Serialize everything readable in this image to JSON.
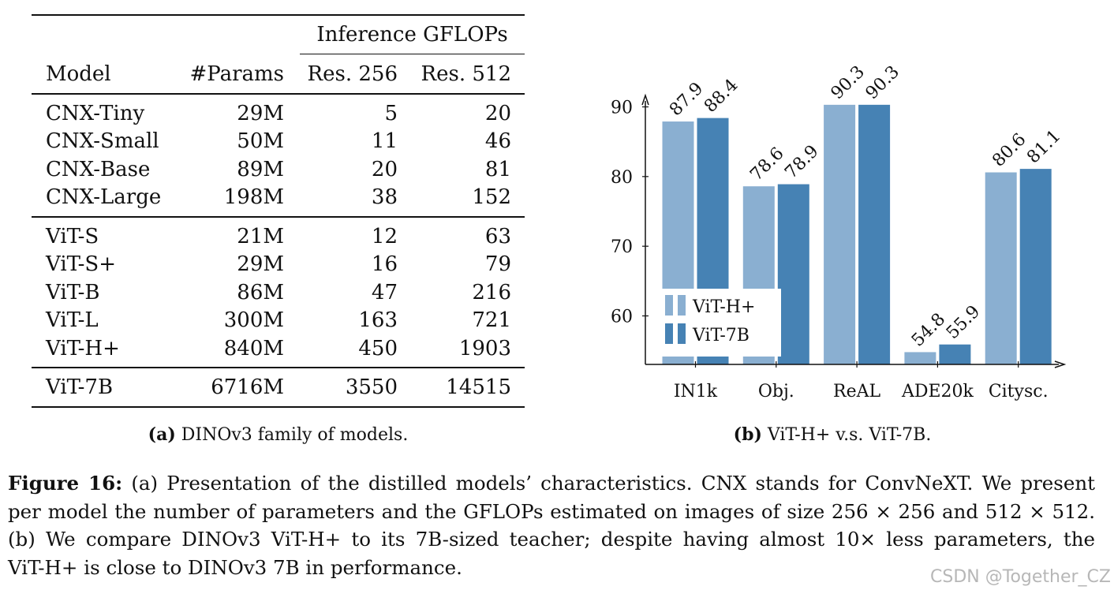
{
  "table": {
    "group_header": "Inference GFLOPs",
    "headers": [
      "Model",
      "#Params",
      "Res. 256",
      "Res. 512"
    ],
    "sections": [
      [
        [
          "CNX-Tiny",
          "29M",
          "5",
          "20"
        ],
        [
          "CNX-Small",
          "50M",
          "11",
          "46"
        ],
        [
          "CNX-Base",
          "89M",
          "20",
          "81"
        ],
        [
          "CNX-Large",
          "198M",
          "38",
          "152"
        ]
      ],
      [
        [
          "ViT-S",
          "21M",
          "12",
          "63"
        ],
        [
          "ViT-S+",
          "29M",
          "16",
          "79"
        ],
        [
          "ViT-B",
          "86M",
          "47",
          "216"
        ],
        [
          "ViT-L",
          "300M",
          "163",
          "721"
        ],
        [
          "ViT-H+",
          "840M",
          "450",
          "1903"
        ]
      ],
      [
        [
          "ViT-7B",
          "6716M",
          "3550",
          "14515"
        ]
      ]
    ]
  },
  "subcaption_a": {
    "label": "(a)",
    "text": "DINOv3 family of models."
  },
  "subcaption_b": {
    "label": "(b)",
    "text": "ViT-H+ v.s. ViT-7B."
  },
  "chart_data": {
    "type": "bar",
    "categories": [
      "IN1k",
      "Obj.",
      "ReAL",
      "ADE20k",
      "Citysc."
    ],
    "series": [
      {
        "name": "ViT-H+",
        "values": [
          87.9,
          78.6,
          90.3,
          54.8,
          80.6
        ],
        "labels": [
          "87.9",
          "78.6",
          "90.3",
          "54.8",
          "80.6"
        ],
        "color": "#8aafd1"
      },
      {
        "name": "ViT-7B",
        "values": [
          88.4,
          78.9,
          90.3,
          55.9,
          81.1
        ],
        "labels": [
          "88.4",
          "78.9",
          "90.3",
          "55.9",
          "81.1"
        ],
        "color": "#4682b4"
      }
    ],
    "yticks": [
      60,
      70,
      80,
      90
    ],
    "ylim": [
      53,
      93
    ],
    "legend_position": "bottom-left",
    "title": "",
    "xlabel": "",
    "ylabel": ""
  },
  "figure_caption": {
    "label": "Figure 16:",
    "lines": [
      "(a) Presentation of the distilled models’ characteristics. CNX stands for ConvNeXT. We present",
      "per model the number of parameters and the GFLOPs estimated on images of size 256 × 256 and 512 × 512.",
      "(b) We compare DINOv3 ViT-H+ to its 7B-sized teacher; despite having almost 10× less parameters, the",
      "ViT-H+ is close to DINOv3 7B in performance."
    ]
  },
  "watermark": "CSDN @Together_CZ"
}
